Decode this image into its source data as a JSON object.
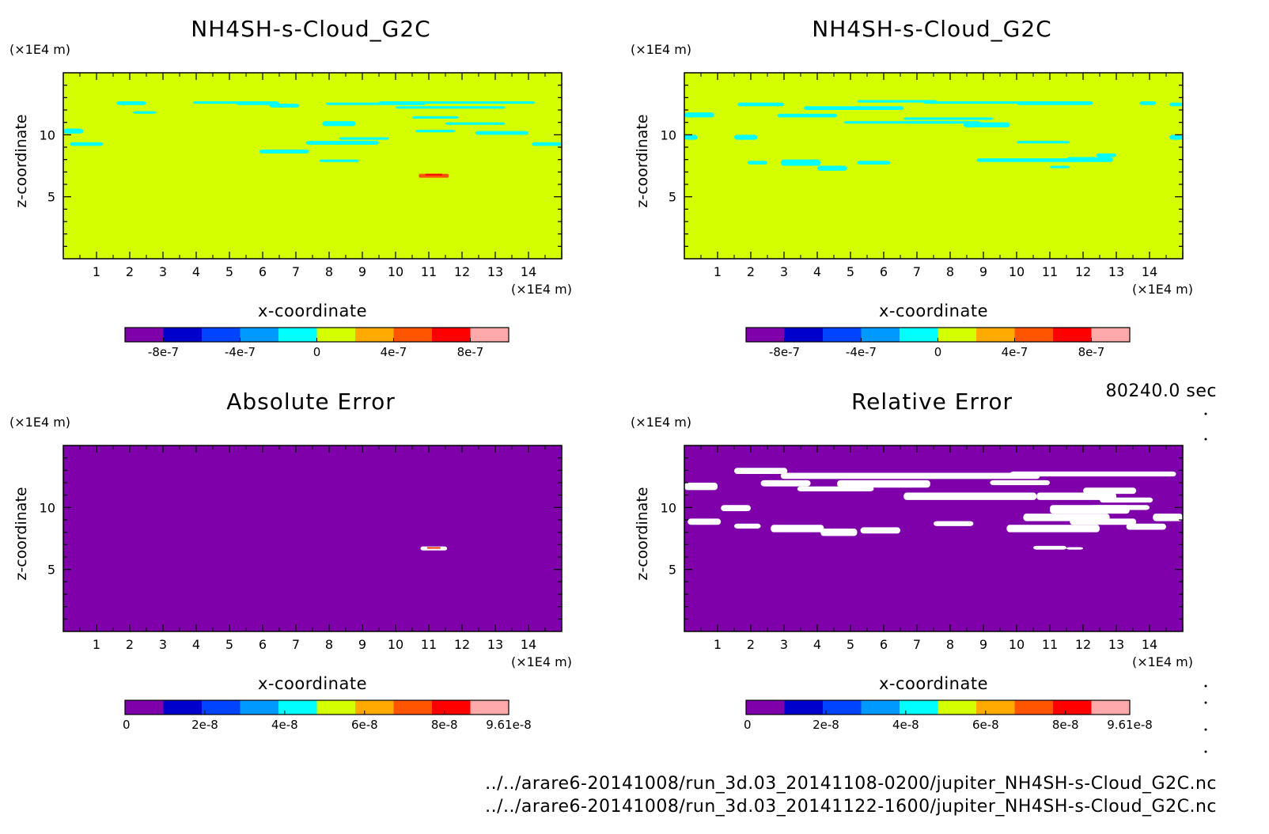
{
  "figure": {
    "timestamp": "80240.0 sec",
    "files": [
      "../../arare6-20141008/run_3d.03_20141108-0200/jupiter_NH4SH-s-Cloud_G2C.nc",
      "../../arare6-20141008/run_3d.03_20141122-1600/jupiter_NH4SH-s-Cloud_G2C.nc"
    ]
  },
  "colors": {
    "field": "#d4ff00",
    "error_bg": "#7f00aa",
    "cyan": "#00ffff",
    "white": "#ffffff"
  },
  "chart_data": [
    {
      "type": "heatmap",
      "title": "NH4SH-s-Cloud_G2C",
      "xlabel": "x-coordinate",
      "ylabel": "z-coordinate",
      "xunit": "(×1E4 m)",
      "yunit": "(×1E4 m)",
      "xlim": [
        0,
        15
      ],
      "ylim": [
        0,
        15
      ],
      "xticks": [
        "1",
        "2",
        "3",
        "4",
        "5",
        "6",
        "7",
        "8",
        "9",
        "10",
        "11",
        "12",
        "13",
        "14"
      ],
      "yticks": [
        "5",
        "10"
      ],
      "background": "~0 (yellow-green)",
      "features_note": "small cyan patches near z=8-12, red/orange peak near x=11, z=6.7",
      "colorbar": {
        "colors": [
          "#7f00aa",
          "#0000cc",
          "#0044ff",
          "#0099ff",
          "#00ffff",
          "#d4ff00",
          "#ffaa00",
          "#ff5500",
          "#ff0000",
          "#ffaaaa"
        ],
        "ticks": [
          "-8e-7",
          "-4e-7",
          "0",
          "4e-7",
          "8e-7"
        ],
        "range": [
          -1e-06,
          1e-06
        ]
      }
    },
    {
      "type": "heatmap",
      "title": "NH4SH-s-Cloud_G2C",
      "xlabel": "x-coordinate",
      "ylabel": "z-coordinate",
      "xunit": "(×1E4 m)",
      "yunit": "(×1E4 m)",
      "xlim": [
        0,
        15
      ],
      "ylim": [
        0,
        15
      ],
      "xticks": [
        "1",
        "2",
        "3",
        "4",
        "5",
        "6",
        "7",
        "8",
        "9",
        "10",
        "11",
        "12",
        "13",
        "14"
      ],
      "yticks": [
        "5",
        "10"
      ],
      "background": "~0 (yellow-green)",
      "features_note": "cyan patches z=8-12",
      "colorbar": {
        "colors": [
          "#7f00aa",
          "#0000cc",
          "#0044ff",
          "#0099ff",
          "#00ffff",
          "#d4ff00",
          "#ffaa00",
          "#ff5500",
          "#ff0000",
          "#ffaaaa"
        ],
        "ticks": [
          "-8e-7",
          "-4e-7",
          "0",
          "4e-7",
          "8e-7"
        ],
        "range": [
          -1e-06,
          1e-06
        ]
      }
    },
    {
      "type": "heatmap",
      "title": "Absolute Error",
      "xlabel": "x-coordinate",
      "ylabel": "z-coordinate",
      "xunit": "(×1E4 m)",
      "yunit": "(×1E4 m)",
      "xlim": [
        0,
        15
      ],
      "ylim": [
        0,
        15
      ],
      "xticks": [
        "1",
        "2",
        "3",
        "4",
        "5",
        "6",
        "7",
        "8",
        "9",
        "10",
        "11",
        "12",
        "13",
        "14"
      ],
      "yticks": [
        "5",
        "10"
      ],
      "background": "0 (purple)",
      "features_note": "single small nonzero spot near x=11, z=6.7",
      "colorbar": {
        "colors": [
          "#7f00aa",
          "#0000cc",
          "#0044ff",
          "#0099ff",
          "#00ffff",
          "#d4ff00",
          "#ffaa00",
          "#ff5500",
          "#ff0000",
          "#ffaaaa"
        ],
        "ticks": [
          "0",
          "2e-8",
          "4e-8",
          "6e-8",
          "8e-8",
          "9.61e-8"
        ],
        "range": [
          0,
          9.61e-08
        ]
      }
    },
    {
      "type": "heatmap",
      "title": "Relative Error",
      "xlabel": "x-coordinate",
      "ylabel": "z-coordinate",
      "xunit": "(×1E4 m)",
      "yunit": "(×1E4 m)",
      "xlim": [
        0,
        15
      ],
      "ylim": [
        0,
        15
      ],
      "xticks": [
        "1",
        "2",
        "3",
        "4",
        "5",
        "6",
        "7",
        "8",
        "9",
        "10",
        "11",
        "12",
        "13",
        "14"
      ],
      "yticks": [
        "5",
        "10"
      ],
      "background": "0 (purple)",
      "features_note": "white (undefined) blobs over z=6.5-12.5",
      "colorbar": {
        "colors": [
          "#7f00aa",
          "#0000cc",
          "#0044ff",
          "#0099ff",
          "#00ffff",
          "#d4ff00",
          "#ffaa00",
          "#ff5500",
          "#ff0000",
          "#ffaaaa"
        ],
        "ticks": [
          "0",
          "2e-8",
          "4e-8",
          "6e-8",
          "8e-8",
          "9.61e-8"
        ],
        "range": [
          0,
          9.61e-08
        ]
      }
    }
  ]
}
